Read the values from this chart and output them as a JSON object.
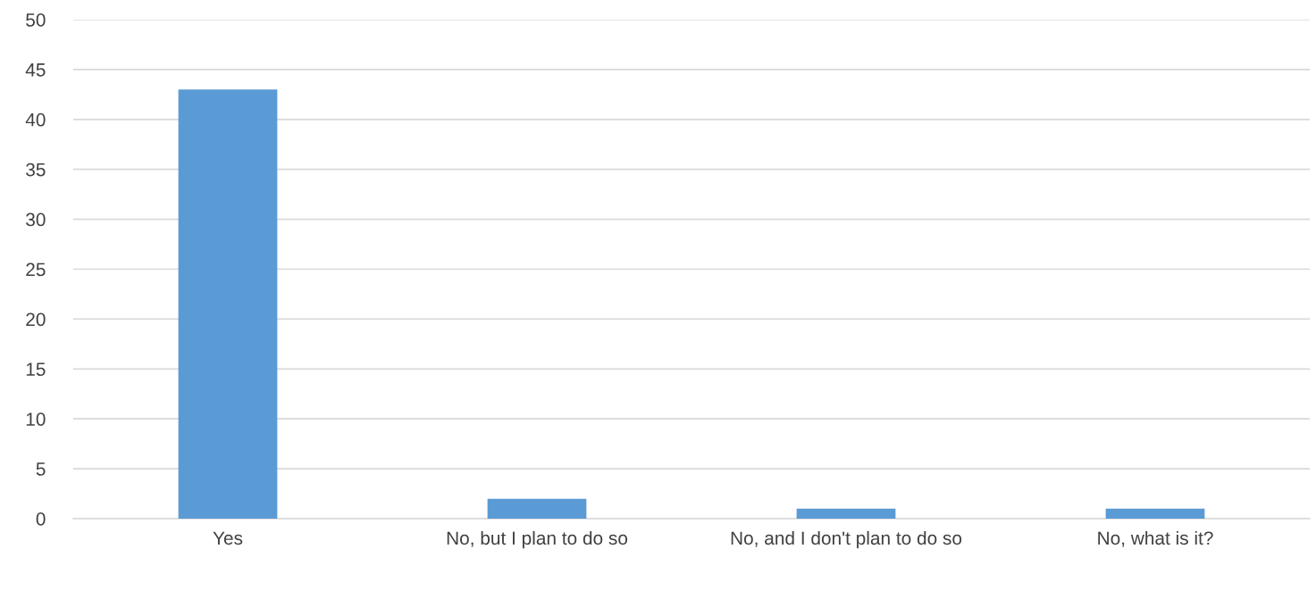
{
  "chart_data": {
    "type": "bar",
    "categories": [
      "Yes",
      "No, but I plan to do so",
      "No, and I don't plan to do so",
      "No, what is it?"
    ],
    "values": [
      43,
      2,
      1,
      1
    ],
    "color": "#5b9bd5",
    "ylim": [
      0,
      50
    ],
    "yticks": [
      0,
      5,
      10,
      15,
      20,
      25,
      30,
      35,
      40,
      45,
      50
    ],
    "grid": "y"
  }
}
